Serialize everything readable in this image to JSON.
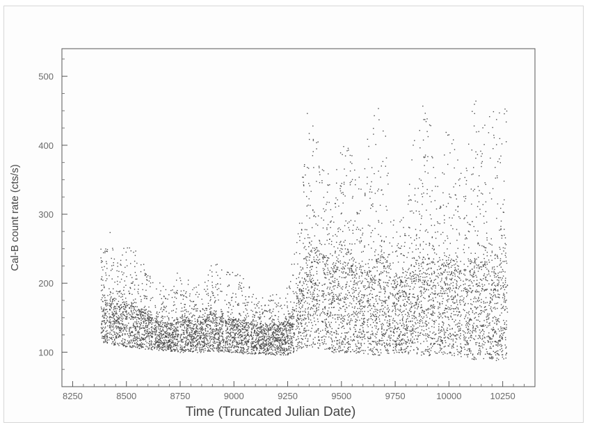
{
  "chart_data": {
    "type": "scatter",
    "title": "",
    "xlabel": "Time (Truncated Julian Date)",
    "ylabel": "Cal-B count rate (cts/s)",
    "xlim": [
      8200,
      10400
    ],
    "ylim": [
      50,
      540
    ],
    "x_ticks": [
      8250,
      8500,
      8750,
      9000,
      9250,
      9500,
      9750,
      10000,
      10250
    ],
    "y_ticks": [
      100,
      200,
      300,
      400,
      500
    ],
    "grid": false,
    "legend": "none",
    "marker_color": "#4a4a4a",
    "series": [
      {
        "x": [
          8380,
          8420,
          8460,
          8500,
          8540,
          8580,
          8620,
          8660,
          8700,
          8750,
          8800,
          8850,
          8900,
          8950,
          9000,
          9050,
          9100,
          9150,
          9200,
          9250,
          9300,
          9340,
          9380,
          9420,
          9460,
          9500,
          9540,
          9580,
          9620,
          9660,
          9700,
          9750,
          9790,
          9830,
          9870,
          9910,
          9950,
          9990,
          10030,
          10070,
          10110,
          10150,
          10190,
          10230,
          10270
        ],
        "y_low": [
          115,
          112,
          110,
          108,
          107,
          105,
          104,
          103,
          102,
          100,
          100,
          100,
          102,
          100,
          100,
          98,
          98,
          97,
          96,
          97,
          103,
          108,
          105,
          104,
          100,
          100,
          98,
          97,
          96,
          95,
          96,
          100,
          98,
          97,
          95,
          95,
          97,
          98,
          95,
          92,
          90,
          90,
          90,
          88,
          88
        ],
        "y_high": [
          270,
          280,
          230,
          265,
          250,
          230,
          210,
          200,
          185,
          230,
          200,
          200,
          235,
          220,
          220,
          205,
          180,
          180,
          190,
          200,
          280,
          460,
          420,
          380,
          330,
          420,
          400,
          360,
          410,
          460,
          430,
          280,
          300,
          400,
          460,
          440,
          330,
          430,
          400,
          380,
          480,
          440,
          470,
          480,
          480
        ],
        "y_typical": [
          185,
          180,
          170,
          175,
          165,
          160,
          150,
          145,
          140,
          155,
          145,
          145,
          160,
          155,
          150,
          145,
          140,
          140,
          140,
          145,
          190,
          260,
          250,
          240,
          220,
          250,
          240,
          220,
          230,
          240,
          240,
          200,
          210,
          230,
          240,
          240,
          220,
          240,
          230,
          220,
          240,
          230,
          240,
          240,
          240
        ]
      }
    ]
  }
}
